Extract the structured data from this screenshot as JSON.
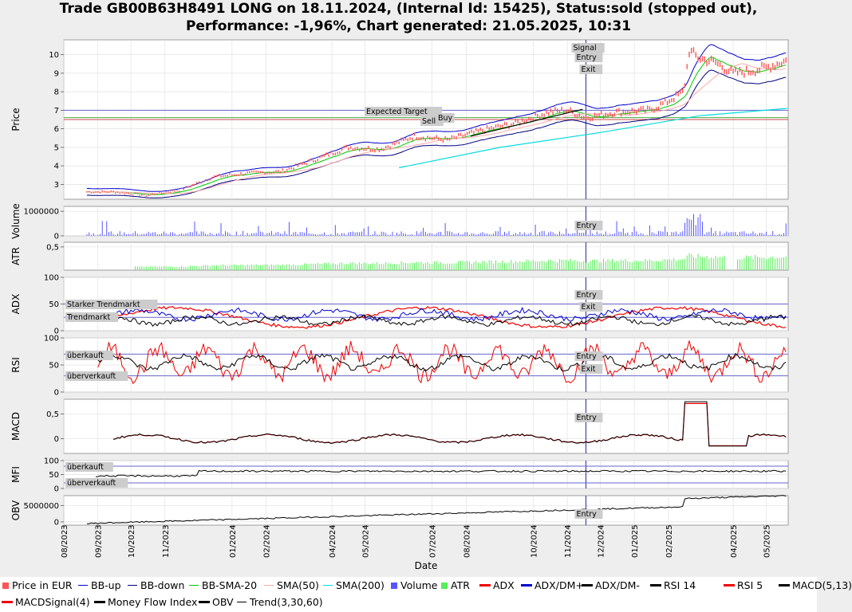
{
  "title": {
    "line1": "Trade GB00B63H8491 LONG on 18.11.2024, (Internal Id: 15425), Status:sold (stopped out),",
    "line2": "Performance: -1,96%, Chart generated: 21.05.2025, 10:31"
  },
  "x_axis_label": "Date",
  "x_ticks": [
    "08/2023",
    "09/2023",
    "10/2023",
    "11/2023",
    "01/2024",
    "02/2024",
    "04/2024",
    "05/2024",
    "07/2024",
    "08/2024",
    "10/2024",
    "11/2024",
    "12/2024",
    "01/2025",
    "02/2025",
    "04/2025",
    "05/2025"
  ],
  "panels": [
    {
      "key": "price",
      "ylabel": "Price",
      "ticks": [
        "3",
        "4",
        "5",
        "6",
        "7",
        "8",
        "9",
        "10"
      ],
      "annotations": [
        "Signal",
        "Entry",
        "Exit",
        "Expected Target",
        "Sell",
        "Buy"
      ]
    },
    {
      "key": "volume",
      "ylabel": "Volume",
      "ticks": [
        "0",
        "1000000"
      ],
      "annotations": [
        "Entry"
      ]
    },
    {
      "key": "atr",
      "ylabel": "ATR",
      "ticks": [
        "0,5"
      ],
      "annotations": []
    },
    {
      "key": "adx",
      "ylabel": "ADX",
      "ticks": [
        "0",
        "50",
        "100"
      ],
      "annotations": [
        "Entry",
        "Exit",
        "Starker Trendmarkt",
        "Trendmarkt"
      ]
    },
    {
      "key": "rsi",
      "ylabel": "RSI",
      "ticks": [
        "0",
        "50",
        "100"
      ],
      "annotations": [
        "Entry",
        "Exit",
        "überkauft",
        "überverkauft"
      ]
    },
    {
      "key": "macd",
      "ylabel": "MACD",
      "ticks": [
        "0",
        "0,5"
      ],
      "annotations": [
        "Entry"
      ]
    },
    {
      "key": "mfi",
      "ylabel": "MFI",
      "ticks": [
        "0",
        "50",
        "100"
      ],
      "annotations": [
        "überkauft",
        "überverkauft"
      ]
    },
    {
      "key": "obv",
      "ylabel": "OBV",
      "ticks": [
        "0",
        "5000000"
      ],
      "annotations": [
        "Entry"
      ]
    }
  ],
  "legend": {
    "row1": [
      {
        "label": "Price in EUR",
        "color": "#ff5555",
        "marker": "box"
      },
      {
        "label": "BB-up",
        "color": "#0000cc",
        "marker": "line"
      },
      {
        "label": "BB-down",
        "color": "#000080",
        "marker": "line"
      },
      {
        "label": "BB-SMA-20",
        "color": "#00cc00",
        "marker": "line"
      },
      {
        "label": "SMA(50)",
        "color": "#ffaaaa",
        "marker": "line"
      },
      {
        "label": "SMA(200)",
        "color": "#00dddd",
        "marker": "line"
      },
      {
        "label": "Volume",
        "color": "#5555ff",
        "marker": "box"
      },
      {
        "label": "ATR",
        "color": "#55ee55",
        "marker": "box"
      },
      {
        "label": "ADX",
        "color": "#ee0000",
        "marker": "dotline"
      },
      {
        "label": "ADX/DM+",
        "color": "#0000cc",
        "marker": "dotline"
      },
      {
        "label": "ADX/DM-",
        "color": "#000000",
        "marker": "dotline"
      },
      {
        "label": "RSI 14",
        "color": "#000000",
        "marker": "dotline"
      },
      {
        "label": "RSI 5",
        "color": "#ee0000",
        "marker": "dotline"
      },
      {
        "label": "MACD(5,13)",
        "color": "#000000",
        "marker": "dotline"
      }
    ],
    "row2": [
      {
        "label": "MACDSignal(4)",
        "color": "#ee0000",
        "marker": "dotline"
      },
      {
        "label": "Money Flow Index",
        "color": "#000000",
        "marker": "dotline"
      },
      {
        "label": "OBV",
        "color": "#000000",
        "marker": "dotline"
      },
      {
        "label": "Trend(3,30,60)",
        "color": "#000000",
        "marker": "line"
      }
    ]
  },
  "chart_data": {
    "type": "line",
    "x_range": [
      "2023-08-01",
      "2025-05-21"
    ],
    "entry_date": "2024-11-18",
    "price": {
      "ylim": [
        2.2,
        10.8
      ],
      "expected_target": 7.0,
      "buy_level": 6.6,
      "sell_level": 6.5,
      "series": [
        {
          "name": "Price in EUR",
          "x": [
            "2023-08-22",
            "2023-09-15",
            "2023-10-15",
            "2023-11-15",
            "2023-12-15",
            "2024-01-15",
            "2024-02-15",
            "2024-03-15",
            "2024-04-15",
            "2024-05-15",
            "2024-06-15",
            "2024-07-15",
            "2024-08-15",
            "2024-09-15",
            "2024-10-15",
            "2024-11-01",
            "2024-11-18",
            "2024-12-15",
            "2025-01-15",
            "2025-02-01",
            "2025-02-15",
            "2025-02-20",
            "2025-03-01",
            "2025-03-15",
            "2025-04-01",
            "2025-04-15",
            "2025-05-01",
            "2025-05-20"
          ],
          "y": [
            2.6,
            2.6,
            2.4,
            2.7,
            3.4,
            3.6,
            3.7,
            4.3,
            5.0,
            4.9,
            5.6,
            5.4,
            5.9,
            6.3,
            6.9,
            7.0,
            6.6,
            6.9,
            7.0,
            7.5,
            8.0,
            10.2,
            9.8,
            9.6,
            9.0,
            9.1,
            9.3,
            9.7
          ]
        },
        {
          "name": "SMA(200)",
          "x": [
            "2024-06-01",
            "2024-09-01",
            "2024-12-01",
            "2025-03-01",
            "2025-05-20"
          ],
          "y": [
            3.9,
            5.0,
            5.8,
            6.7,
            7.1
          ]
        }
      ]
    },
    "volume": {
      "ylim": [
        0,
        1200000
      ]
    },
    "atr": {
      "ylim": [
        0,
        0.6
      ]
    },
    "adx": {
      "ylim": [
        0,
        100
      ],
      "strong_trend": 50,
      "trend": 25
    },
    "rsi": {
      "ylim": [
        0,
        100
      ],
      "overbought": 70,
      "oversold": 30
    },
    "macd": {
      "ylim": [
        -0.3,
        0.8
      ]
    },
    "mfi": {
      "ylim": [
        0,
        100
      ]
    },
    "obv": {
      "ylim": [
        -1000000,
        8000000
      ]
    }
  }
}
